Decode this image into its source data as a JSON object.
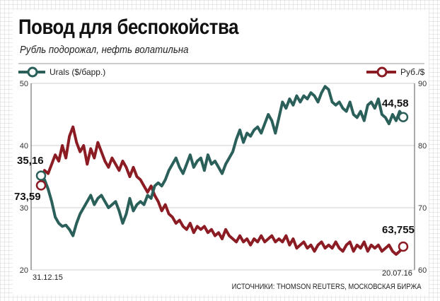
{
  "title": "Повод для беспокойства",
  "subtitle": "Рубль подорожал, нефть волатильна",
  "source": "ИСТОЧНИКИ: THOMSON REUTERS, МОСКОВСКАЯ БИРЖА",
  "colors": {
    "urals": "#2b5f5a",
    "rub": "#8c1c24",
    "axis": "#555555",
    "grid": "#cfcfcf"
  },
  "chart_data": {
    "type": "line",
    "x_start_label": "31.12.15",
    "x_end_label": "20.07.16",
    "left_axis": {
      "ticks": [
        "50",
        "40",
        "30",
        "20"
      ],
      "ylim": [
        20,
        50
      ]
    },
    "right_axis": {
      "ticks": [
        "90",
        "80",
        "70",
        "60"
      ],
      "ylim": [
        60,
        90
      ]
    },
    "series": [
      {
        "name": "Urals ($/барр.)",
        "axis": "left",
        "start_label": "35,16",
        "end_label": "44,58",
        "values": [
          35.16,
          34.5,
          33.0,
          31.0,
          28.5,
          27.5,
          27.0,
          27.2,
          26.5,
          25.5,
          27.5,
          29.0,
          30.0,
          31.0,
          32.0,
          30.5,
          31.5,
          32.0,
          31.0,
          30.0,
          30.5,
          31.0,
          29.5,
          27.5,
          29.0,
          31.5,
          29.5,
          30.5,
          31.0,
          30.5,
          32.0,
          31.5,
          33.5,
          34.0,
          33.5,
          34.5,
          36.0,
          37.0,
          38.0,
          36.5,
          35.5,
          37.0,
          38.5,
          36.5,
          37.5,
          38.0,
          36.0,
          38.5,
          37.0,
          37.5,
          36.5,
          35.5,
          37.0,
          38.0,
          39.0,
          41.0,
          42.5,
          40.5,
          42.0,
          41.5,
          42.5,
          43.0,
          42.0,
          43.5,
          45.0,
          44.0,
          42.0,
          44.5,
          47.0,
          46.0,
          47.5,
          46.5,
          48.0,
          47.0,
          48.0,
          47.5,
          48.5,
          48.0,
          47.0,
          48.5,
          49.5,
          49.0,
          47.0,
          46.5,
          47.0,
          46.0,
          45.5,
          47.0,
          45.0,
          44.5,
          45.5,
          44.0,
          46.5,
          47.0,
          46.0,
          47.5,
          45.0,
          44.5,
          43.5,
          45.0,
          44.0,
          45.5,
          44.58
        ]
      },
      {
        "name": "Руб./$",
        "axis": "right",
        "start_label": "73,59",
        "end_label": "63,755",
        "values": [
          73.59,
          76.0,
          75.5,
          77.0,
          78.5,
          77.5,
          80.0,
          78.0,
          81.5,
          83.0,
          80.5,
          79.0,
          80.0,
          77.0,
          79.5,
          78.0,
          80.5,
          79.0,
          77.5,
          76.5,
          78.0,
          77.0,
          76.0,
          77.5,
          76.5,
          75.0,
          76.5,
          75.0,
          74.5,
          73.5,
          72.5,
          73.5,
          72.0,
          71.0,
          69.5,
          70.5,
          69.0,
          68.5,
          67.5,
          68.0,
          67.0,
          66.5,
          67.5,
          66.0,
          67.0,
          66.5,
          67.0,
          66.0,
          66.5,
          65.5,
          66.0,
          65.0,
          66.5,
          65.5,
          65.0,
          64.5,
          65.5,
          64.5,
          65.0,
          64.0,
          65.0,
          64.5,
          65.5,
          64.5,
          65.0,
          65.5,
          64.5,
          65.0,
          64.5,
          65.5,
          64.0,
          65.0,
          63.5,
          64.0,
          64.5,
          63.5,
          64.0,
          63.0,
          64.0,
          64.5,
          63.5,
          64.0,
          63.5,
          64.5,
          63.5,
          63.0,
          64.0,
          64.5,
          63.0,
          64.0,
          63.5,
          64.5,
          63.0,
          64.0,
          63.5,
          64.0,
          63.0,
          63.5,
          64.0,
          63.0,
          62.5,
          63.0,
          63.755
        ]
      }
    ]
  }
}
